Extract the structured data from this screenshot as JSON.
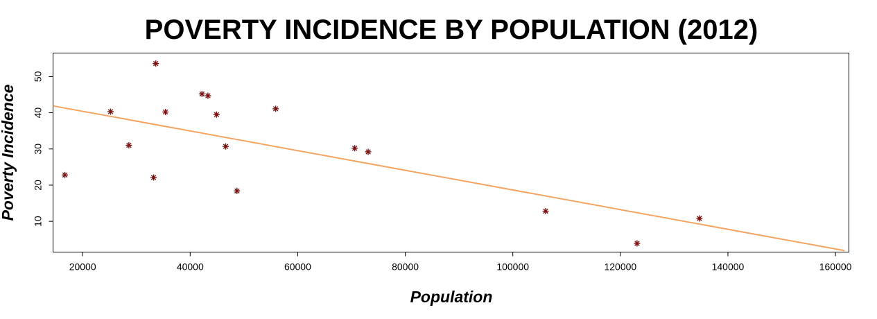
{
  "chart_data": {
    "type": "scatter",
    "title": "POVERTY INCIDENCE BY POPULATION (2012)",
    "xlabel": "Population",
    "ylabel": "Poverty Incidence",
    "xlim": [
      14500,
      162500
    ],
    "ylim": [
      1.5,
      56.5
    ],
    "xticks": [
      20000,
      40000,
      60000,
      80000,
      100000,
      120000,
      140000,
      160000
    ],
    "yticks": [
      10,
      20,
      30,
      40,
      50
    ],
    "grid": false,
    "legend": "none",
    "series": [
      {
        "marker": "asterisk",
        "color": "#7a1010",
        "points": [
          {
            "x": 16700,
            "y": 22.8
          },
          {
            "x": 25200,
            "y": 40.3
          },
          {
            "x": 28600,
            "y": 31.0
          },
          {
            "x": 33200,
            "y": 22.1
          },
          {
            "x": 33600,
            "y": 53.6
          },
          {
            "x": 35400,
            "y": 40.2
          },
          {
            "x": 42200,
            "y": 45.2
          },
          {
            "x": 43300,
            "y": 44.7
          },
          {
            "x": 44900,
            "y": 39.5
          },
          {
            "x": 46600,
            "y": 30.7
          },
          {
            "x": 48700,
            "y": 18.4
          },
          {
            "x": 55900,
            "y": 41.1
          },
          {
            "x": 70600,
            "y": 30.2
          },
          {
            "x": 73100,
            "y": 29.2
          },
          {
            "x": 106100,
            "y": 12.8
          },
          {
            "x": 123100,
            "y": 3.9
          },
          {
            "x": 134700,
            "y": 10.8
          }
        ]
      }
    ],
    "trend_line": {
      "color": "#f4a460",
      "from": {
        "x": 14500,
        "y": 41.9
      },
      "to": {
        "x": 161700,
        "y": 1.9
      }
    }
  }
}
